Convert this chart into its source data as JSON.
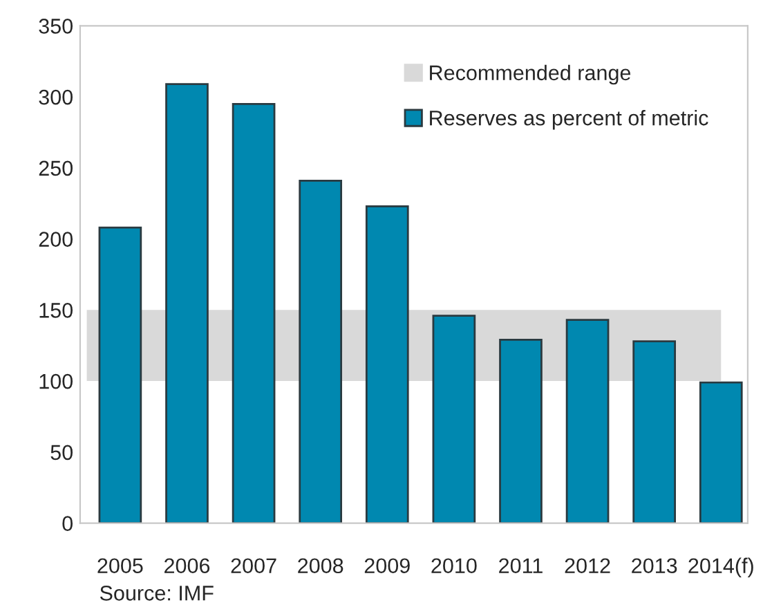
{
  "chart_data": {
    "type": "bar",
    "categories": [
      "2005",
      "2006",
      "2007",
      "2008",
      "2009",
      "2010",
      "2011",
      "2012",
      "2013",
      "2014(f)"
    ],
    "series": [
      {
        "name": "Reserves as percent of metric",
        "color": "#0088b0",
        "values": [
          208,
          309,
          295,
          241,
          223,
          146,
          129,
          143,
          128,
          99
        ]
      }
    ],
    "ylim": [
      0,
      350
    ],
    "yticks": [
      0,
      50,
      100,
      150,
      200,
      250,
      300,
      350
    ],
    "bands": [
      {
        "axis": "y",
        "from": 100,
        "to": 150,
        "label": "Recommended range",
        "color": "#d9d9d9"
      }
    ],
    "annotations": [
      "Source: IMF"
    ],
    "legend": "top right",
    "grid": false
  }
}
